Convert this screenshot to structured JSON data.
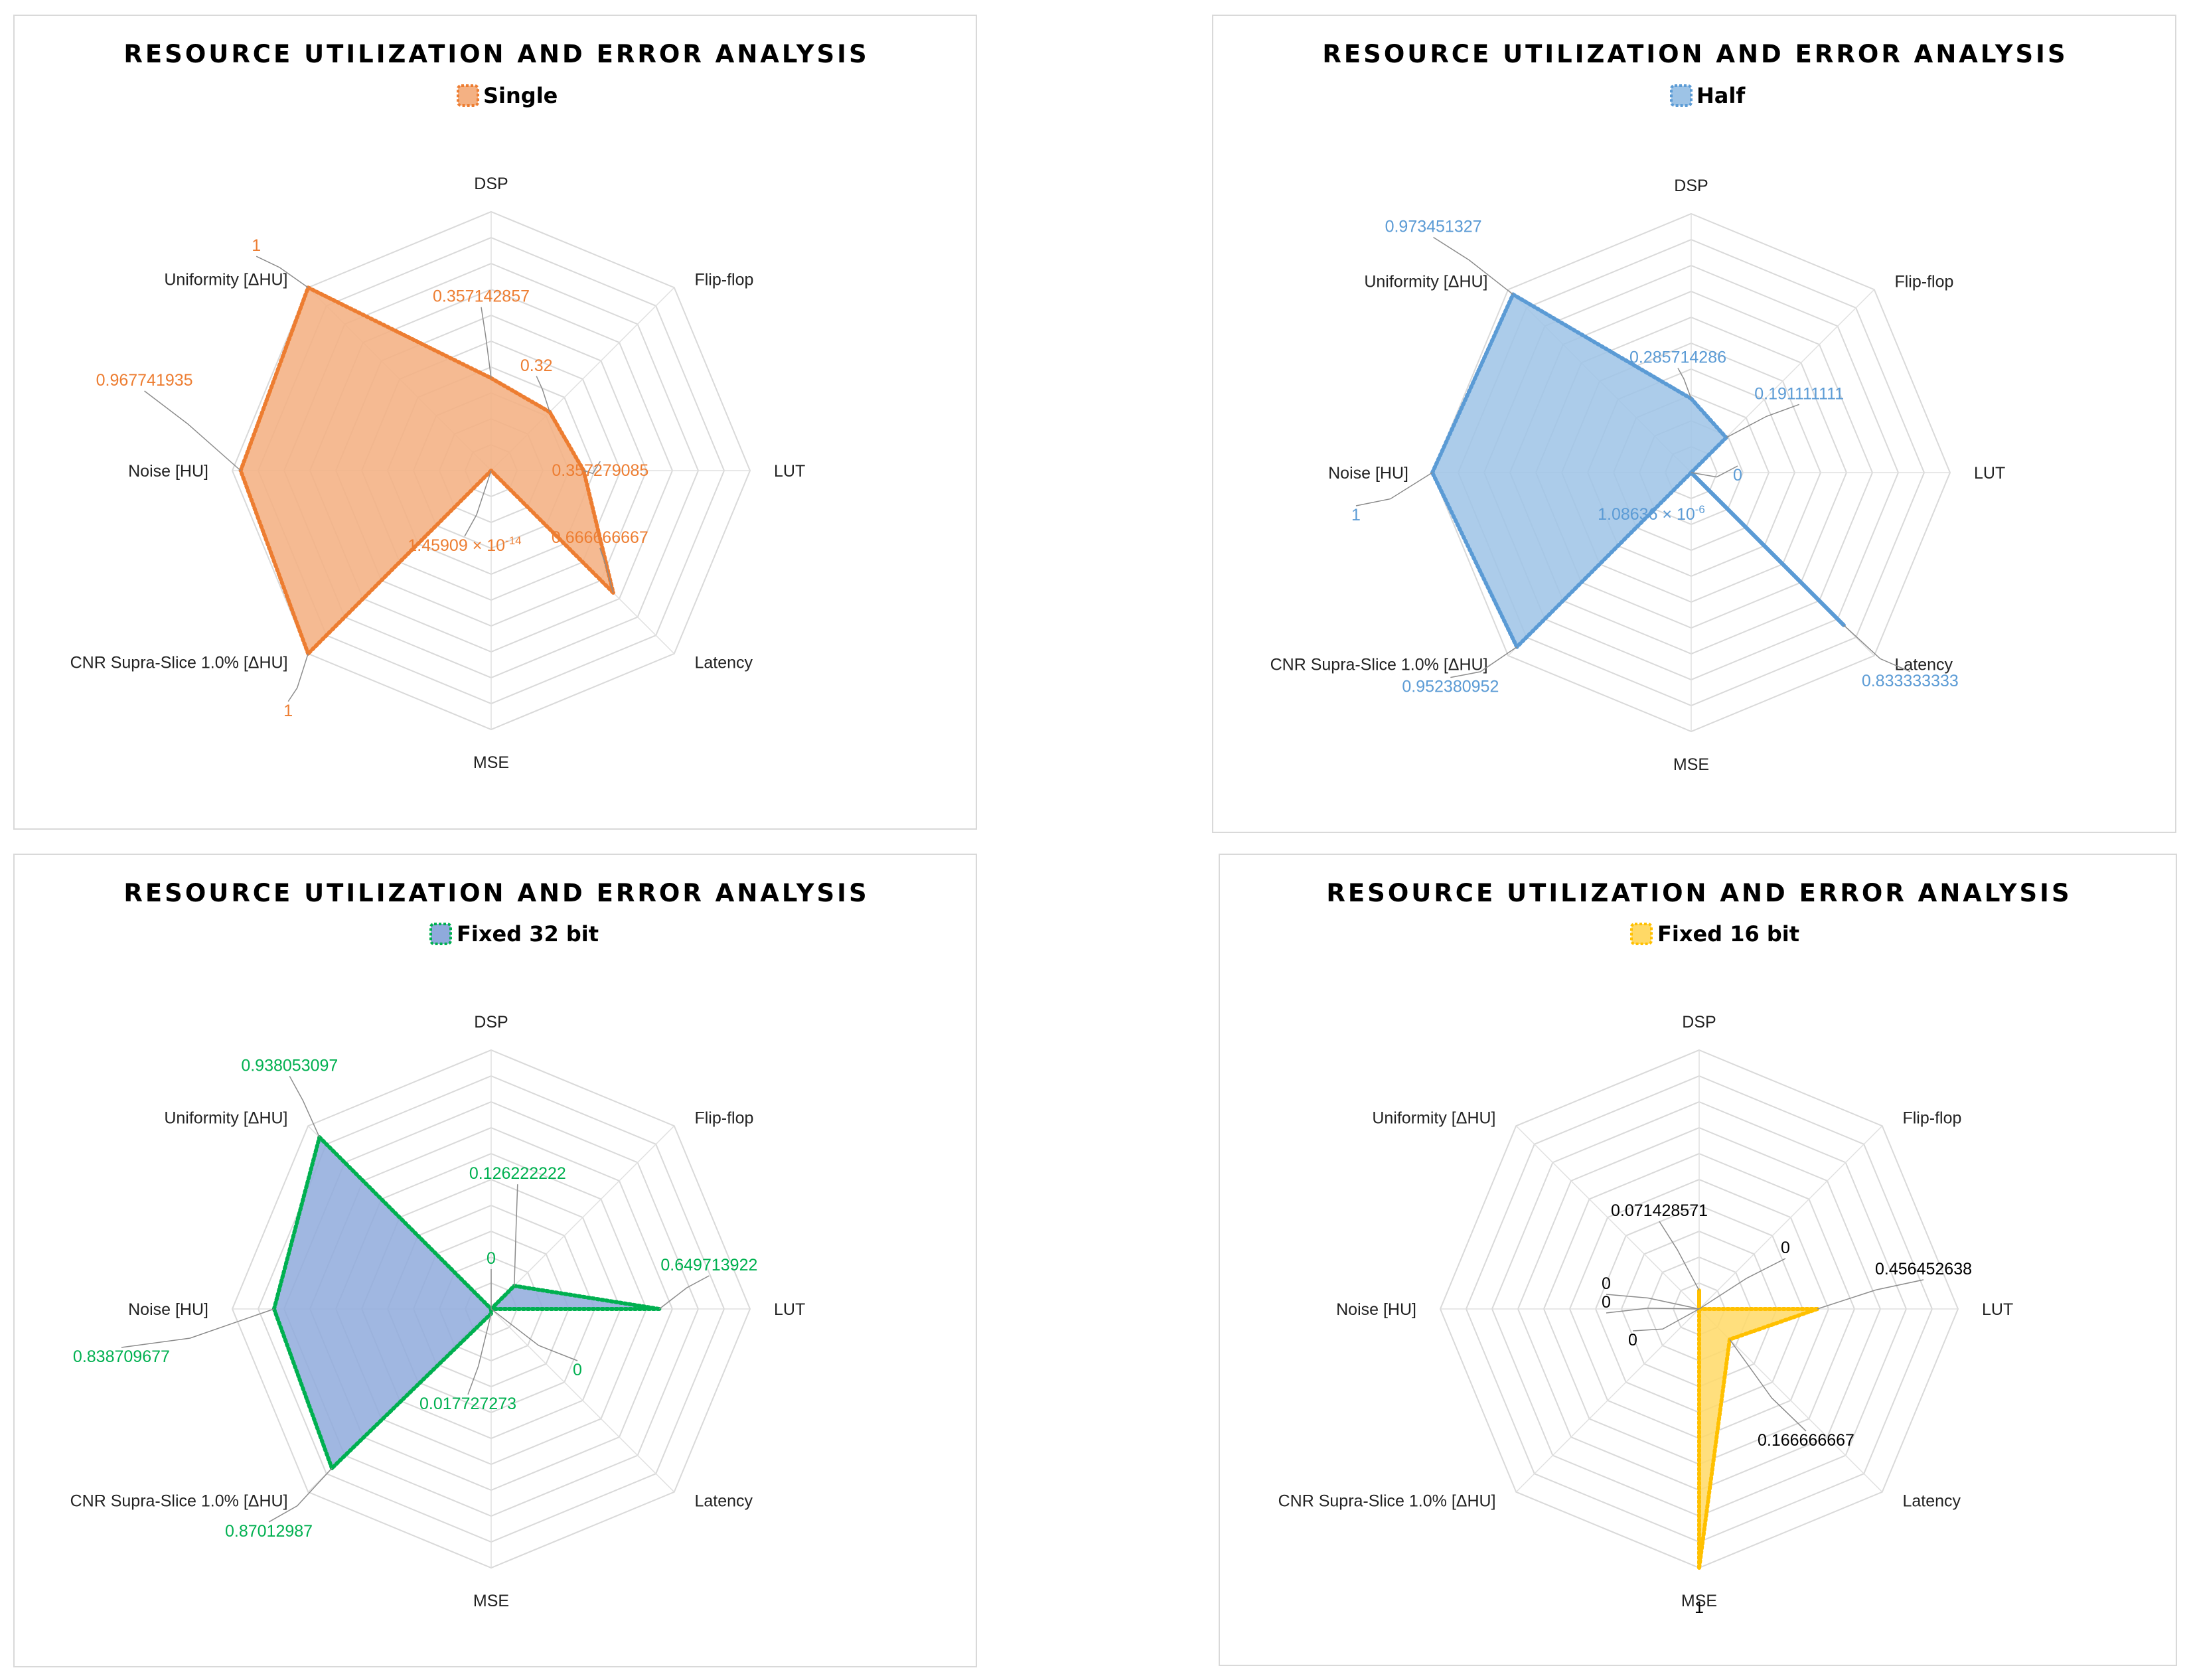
{
  "chart_data": [
    {
      "type": "radar",
      "title": "RESOURCE UTILIZATION AND ERROR ANALYSIS",
      "series": [
        {
          "name": "Single",
          "color": "#ED7D31",
          "fill": "#F4B183",
          "values": [
            0.357142857,
            0.32,
            0.357279085,
            0.666666667,
            1.45909e-14,
            1,
            0.967741935,
            1
          ],
          "data_labels": [
            "0.357142857",
            "0.32",
            "0.357279085",
            "0.666666667",
            "1.45909 × 10",
            "1",
            "0.967741935",
            "1"
          ]
        }
      ],
      "axes": [
        "DSP",
        "Flip-flop",
        "LUT",
        "Latency",
        "MSE",
        "CNR Supra-Slice 1.0% [ΔHU]",
        "Noise [HU]",
        "Uniformity [ΔHU]"
      ],
      "sci_exponent": "-14",
      "range": [
        0,
        1
      ],
      "gridlines": 10,
      "legend": "top"
    },
    {
      "type": "radar",
      "title": "RESOURCE UTILIZATION AND ERROR ANALYSIS",
      "series": [
        {
          "name": "Half",
          "color": "#5B9BD5",
          "fill": "#9DC3E6",
          "values": [
            0.285714286,
            0.191111111,
            0,
            0.833333333,
            1.08636e-06,
            0.952380952,
            1,
            0.973451327
          ],
          "data_labels": [
            "0.285714286",
            "0.191111111",
            "0",
            "0.833333333",
            "1.08636 × 10",
            "0.952380952",
            "1",
            "0.973451327"
          ]
        }
      ],
      "axes": [
        "DSP",
        "Flip-flop",
        "LUT",
        "Latency",
        "MSE",
        "CNR Supra-Slice 1.0% [ΔHU]",
        "Noise [HU]",
        "Uniformity [ΔHU]"
      ],
      "sci_exponent": "-6",
      "range": [
        0,
        1
      ],
      "gridlines": 10,
      "legend": "top"
    },
    {
      "type": "radar",
      "title": "RESOURCE UTILIZATION AND ERROR ANALYSIS",
      "series": [
        {
          "name": "Fixed 32 bit",
          "color": "#00B050",
          "fill": "#8FAADC",
          "values": [
            0,
            0.126222222,
            0.649713922,
            0,
            0.017727273,
            0.87012987,
            0.838709677,
            0.938053097
          ],
          "data_labels": [
            "0",
            "0.126222222",
            "0.649713922",
            "0",
            "0.017727273",
            "0.87012987",
            "0.838709677",
            "0.938053097"
          ]
        }
      ],
      "axes": [
        "DSP",
        "Flip-flop",
        "LUT",
        "Latency",
        "MSE",
        "CNR Supra-Slice 1.0% [ΔHU]",
        "Noise [HU]",
        "Uniformity [ΔHU]"
      ],
      "sci_exponent": "",
      "range": [
        0,
        1
      ],
      "gridlines": 10,
      "legend": "top"
    },
    {
      "type": "radar",
      "title": "RESOURCE UTILIZATION AND ERROR ANALYSIS",
      "series": [
        {
          "name": "Fixed 16 bit",
          "color": "#FFC000",
          "fill": "#FFD966",
          "values": [
            0.071428571,
            0,
            0.456452638,
            0.166666667,
            1,
            0,
            0,
            0
          ],
          "data_labels": [
            "0.071428571",
            "0",
            "0.456452638",
            "0.166666667",
            "1",
            "0",
            "0",
            "0"
          ]
        }
      ],
      "axes": [
        "DSP",
        "Flip-flop",
        "LUT",
        "Latency",
        "MSE",
        "CNR Supra-Slice 1.0% [ΔHU]",
        "Noise [HU]",
        "Uniformity [ΔHU]"
      ],
      "sci_exponent": "",
      "range": [
        0,
        1
      ],
      "gridlines": 10,
      "legend": "top"
    }
  ]
}
